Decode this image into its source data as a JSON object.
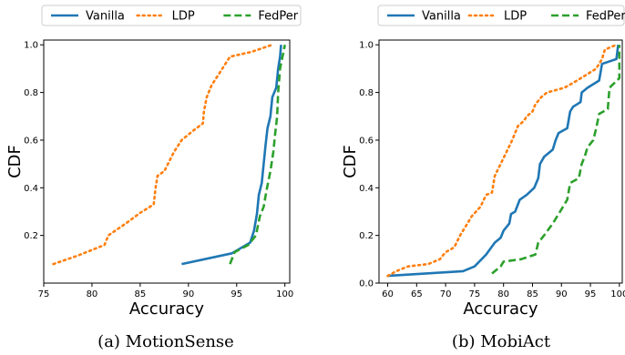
{
  "chart_data": [
    {
      "type": "line",
      "subplot_caption": "(a) MotionSense",
      "xlabel": "Accuracy",
      "ylabel": "CDF",
      "xlim": [
        75,
        100.5
      ],
      "ylim": [
        0.0,
        1.02
      ],
      "xticks": [
        75,
        80,
        85,
        90,
        95,
        100
      ],
      "yticks": [
        0.2,
        0.4,
        0.6,
        0.8,
        1.0
      ],
      "grid": false,
      "legend": {
        "placement": "top-center, outside plot",
        "entries": [
          "Vanilla",
          "LDP",
          "FedPer"
        ]
      },
      "series": [
        {
          "name": "Vanilla",
          "style": "solid",
          "color": "#1f77b4",
          "points": [
            [
              89.3,
              0.08
            ],
            [
              94.5,
              0.125
            ],
            [
              96.4,
              0.17
            ],
            [
              96.8,
              0.22
            ],
            [
              97.1,
              0.29
            ],
            [
              97.3,
              0.37
            ],
            [
              97.6,
              0.42
            ],
            [
              97.8,
              0.5
            ],
            [
              98.0,
              0.58
            ],
            [
              98.2,
              0.65
            ],
            [
              98.5,
              0.7
            ],
            [
              98.7,
              0.78
            ],
            [
              99.1,
              0.82
            ],
            [
              99.3,
              0.9
            ],
            [
              99.5,
              0.95
            ],
            [
              99.6,
              1.0
            ]
          ]
        },
        {
          "name": "LDP",
          "style": "dotted",
          "color": "#ff7f0e",
          "points": [
            [
              76.0,
              0.08
            ],
            [
              78.5,
              0.115
            ],
            [
              81.3,
              0.16
            ],
            [
              81.7,
              0.2
            ],
            [
              83.5,
              0.25
            ],
            [
              85.0,
              0.295
            ],
            [
              86.4,
              0.33
            ],
            [
              86.6,
              0.4
            ],
            [
              86.8,
              0.45
            ],
            [
              87.5,
              0.47
            ],
            [
              88.5,
              0.55
            ],
            [
              89.3,
              0.6
            ],
            [
              90.5,
              0.64
            ],
            [
              91.5,
              0.67
            ],
            [
              91.6,
              0.72
            ],
            [
              91.9,
              0.78
            ],
            [
              92.4,
              0.83
            ],
            [
              93.2,
              0.88
            ],
            [
              94.3,
              0.95
            ],
            [
              96.5,
              0.97
            ],
            [
              98.7,
              1.0
            ]
          ]
        },
        {
          "name": "FedPer",
          "style": "dashed",
          "color": "#2ca02c",
          "points": [
            [
              94.3,
              0.08
            ],
            [
              94.8,
              0.13
            ],
            [
              96.2,
              0.16
            ],
            [
              97.0,
              0.2
            ],
            [
              97.4,
              0.28
            ],
            [
              97.8,
              0.32
            ],
            [
              98.1,
              0.39
            ],
            [
              98.5,
              0.47
            ],
            [
              98.8,
              0.55
            ],
            [
              99.0,
              0.63
            ],
            [
              99.2,
              0.7
            ],
            [
              99.3,
              0.8
            ],
            [
              99.5,
              0.9
            ],
            [
              99.8,
              0.96
            ],
            [
              100.0,
              1.0
            ]
          ]
        }
      ]
    },
    {
      "type": "line",
      "subplot_caption": "(b) MobiAct",
      "xlabel": "Accuracy",
      "ylabel": "CDF",
      "xlim": [
        58.5,
        100.5
      ],
      "ylim": [
        0.0,
        1.02
      ],
      "xticks": [
        60,
        65,
        70,
        75,
        80,
        85,
        90,
        95,
        100
      ],
      "yticks": [
        0.0,
        0.2,
        0.4,
        0.6,
        0.8,
        1.0
      ],
      "grid": false,
      "legend": {
        "placement": "top-center, outside plot",
        "entries": [
          "Vanilla",
          "LDP",
          "FedPer"
        ]
      },
      "series": [
        {
          "name": "Vanilla",
          "style": "solid",
          "color": "#1f77b4",
          "points": [
            [
              60.0,
              0.03
            ],
            [
              73.0,
              0.05
            ],
            [
              75.0,
              0.07
            ],
            [
              77.0,
              0.12
            ],
            [
              78.5,
              0.17
            ],
            [
              79.5,
              0.19
            ],
            [
              80.0,
              0.22
            ],
            [
              81.0,
              0.25
            ],
            [
              81.3,
              0.29
            ],
            [
              82.0,
              0.3
            ],
            [
              82.8,
              0.35
            ],
            [
              84.0,
              0.37
            ],
            [
              85.3,
              0.4
            ],
            [
              86.0,
              0.44
            ],
            [
              86.3,
              0.5
            ],
            [
              87.0,
              0.53
            ],
            [
              88.5,
              0.56
            ],
            [
              89.0,
              0.6
            ],
            [
              89.5,
              0.63
            ],
            [
              91.0,
              0.65
            ],
            [
              91.5,
              0.72
            ],
            [
              92.0,
              0.74
            ],
            [
              93.3,
              0.76
            ],
            [
              93.5,
              0.8
            ],
            [
              94.5,
              0.82
            ],
            [
              96.5,
              0.85
            ],
            [
              97.0,
              0.92
            ],
            [
              99.5,
              0.94
            ],
            [
              99.8,
              1.0
            ]
          ]
        },
        {
          "name": "LDP",
          "style": "dotted",
          "color": "#ff7f0e",
          "points": [
            [
              60.0,
              0.03
            ],
            [
              61.5,
              0.05
            ],
            [
              63.5,
              0.07
            ],
            [
              67.0,
              0.08
            ],
            [
              69.0,
              0.1
            ],
            [
              70.0,
              0.13
            ],
            [
              71.5,
              0.15
            ],
            [
              72.5,
              0.2
            ],
            [
              73.5,
              0.24
            ],
            [
              74.5,
              0.28
            ],
            [
              76.0,
              0.32
            ],
            [
              77.0,
              0.37
            ],
            [
              78.0,
              0.38
            ],
            [
              78.5,
              0.45
            ],
            [
              79.5,
              0.5
            ],
            [
              80.5,
              0.55
            ],
            [
              81.5,
              0.6
            ],
            [
              82.5,
              0.66
            ],
            [
              83.5,
              0.68
            ],
            [
              84.0,
              0.7
            ],
            [
              85.0,
              0.72
            ],
            [
              85.5,
              0.75
            ],
            [
              86.5,
              0.78
            ],
            [
              87.5,
              0.8
            ],
            [
              89.0,
              0.81
            ],
            [
              90.5,
              0.82
            ],
            [
              92.0,
              0.84
            ],
            [
              94.0,
              0.87
            ],
            [
              96.0,
              0.9
            ],
            [
              97.0,
              0.94
            ],
            [
              97.5,
              0.98
            ],
            [
              99.5,
              1.0
            ]
          ]
        },
        {
          "name": "FedPer",
          "style": "dashed",
          "color": "#2ca02c",
          "points": [
            [
              78.0,
              0.04
            ],
            [
              79.5,
              0.07
            ],
            [
              80.0,
              0.09
            ],
            [
              83.0,
              0.1
            ],
            [
              85.5,
              0.12
            ],
            [
              86.0,
              0.17
            ],
            [
              87.0,
              0.2
            ],
            [
              88.5,
              0.25
            ],
            [
              90.0,
              0.31
            ],
            [
              91.0,
              0.35
            ],
            [
              91.5,
              0.42
            ],
            [
              93.0,
              0.44
            ],
            [
              93.5,
              0.5
            ],
            [
              94.0,
              0.53
            ],
            [
              94.5,
              0.57
            ],
            [
              95.5,
              0.6
            ],
            [
              96.0,
              0.65
            ],
            [
              96.5,
              0.71
            ],
            [
              98.0,
              0.73
            ],
            [
              98.3,
              0.82
            ],
            [
              100.0,
              0.86
            ],
            [
              100.0,
              1.0
            ]
          ]
        }
      ]
    }
  ]
}
